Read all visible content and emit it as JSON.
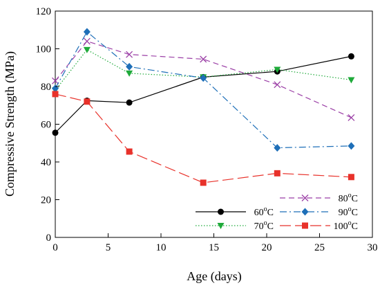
{
  "chart_data": {
    "type": "line",
    "xlabel": "Age (days)",
    "ylabel": "Compressive Strength (MPa)",
    "xlim": [
      0,
      30
    ],
    "ylim": [
      0,
      120
    ],
    "xticks": [
      0,
      5,
      10,
      15,
      20,
      25,
      30
    ],
    "yticks": [
      0,
      20,
      40,
      60,
      80,
      100,
      120
    ],
    "grid": false,
    "legend_position": "bottom-right",
    "series": [
      {
        "name": "60°C",
        "label_base": "60",
        "label_sup": "o",
        "label_unit": "C",
        "marker": "circle",
        "dash": "solid",
        "color": "#000000",
        "x": [
          0,
          3,
          7,
          14,
          21,
          28
        ],
        "y": [
          55.5,
          72.5,
          71.5,
          85,
          88,
          96
        ]
      },
      {
        "name": "70°C",
        "label_base": "70",
        "label_sup": "o",
        "label_unit": "C",
        "marker": "triangle-down",
        "dash": "dotted",
        "color": "#1faa3a",
        "x": [
          0,
          3,
          7,
          14,
          21,
          28
        ],
        "y": [
          78,
          99.5,
          87,
          85,
          89,
          83.5
        ]
      },
      {
        "name": "80°C",
        "label_base": "80",
        "label_sup": "o",
        "label_unit": "C",
        "marker": "x",
        "dash": "dashed",
        "color": "#9b3fa6",
        "x": [
          0,
          3,
          7,
          14,
          21,
          28
        ],
        "y": [
          83,
          104,
          97,
          94.5,
          81,
          63.5
        ]
      },
      {
        "name": "90°C",
        "label_base": "90",
        "label_sup": "o",
        "label_unit": "C",
        "marker": "diamond",
        "dash": "dashdot",
        "color": "#1e6fb8",
        "x": [
          0,
          3,
          7,
          14,
          21,
          28
        ],
        "y": [
          79,
          109,
          90.5,
          84.5,
          47.5,
          48.5
        ]
      },
      {
        "name": "100°C",
        "label_base": "100",
        "label_sup": "o",
        "label_unit": "C",
        "marker": "square",
        "dash": "longdash",
        "color": "#e8312a",
        "x": [
          0,
          3,
          7,
          14,
          21,
          28
        ],
        "y": [
          76,
          72,
          45.5,
          29,
          34,
          32
        ]
      }
    ]
  }
}
